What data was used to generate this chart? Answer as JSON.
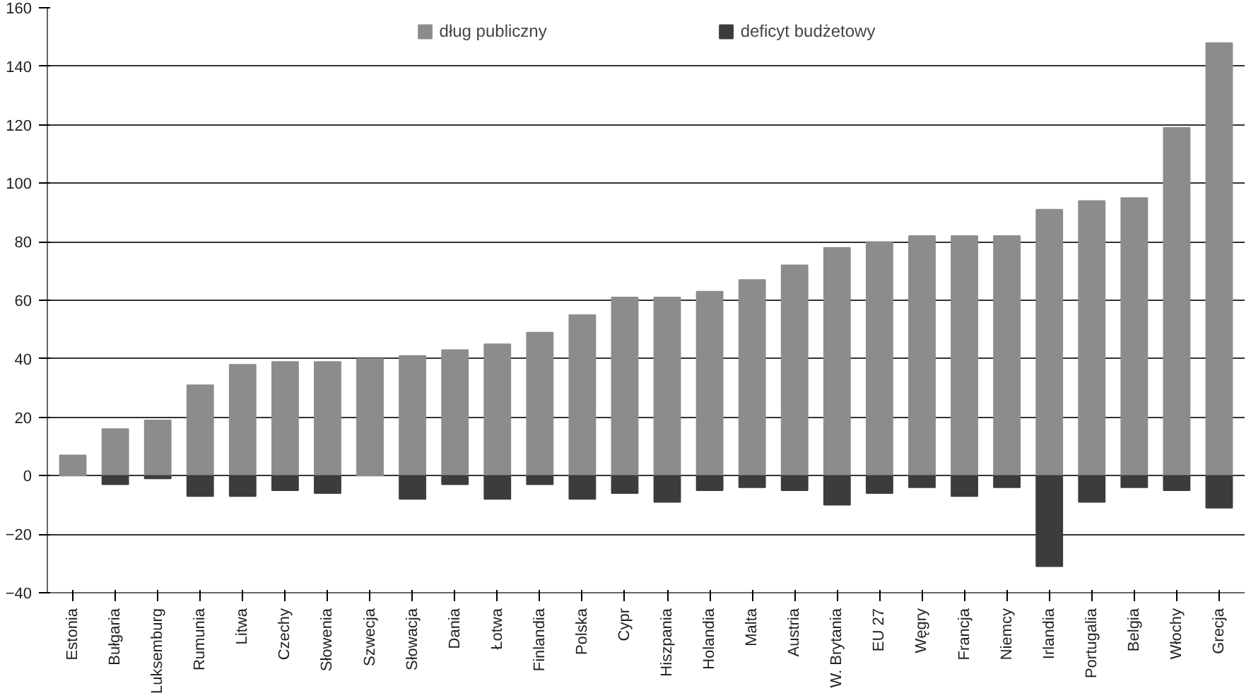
{
  "chart_data": {
    "type": "bar",
    "categories": [
      "Estonia",
      "Bułgaria",
      "Luksemburg",
      "Rumunia",
      "Litwa",
      "Czechy",
      "Słowenia",
      "Szwecja",
      "Słowacja",
      "Dania",
      "Łotwa",
      "Finlandia",
      "Polska",
      "Cypr",
      "Hiszpania",
      "Holandia",
      "Malta",
      "Austria",
      "W. Brytania",
      "EU 27",
      "Węgry",
      "Francja",
      "Niemcy",
      "Irlandia",
      "Portugalia",
      "Belgia",
      "Włochy",
      "Grecja"
    ],
    "series": [
      {
        "name": "dług publiczny",
        "color": "#8c8c8c",
        "values": [
          7,
          16,
          19,
          31,
          38,
          39,
          39,
          40,
          41,
          43,
          45,
          49,
          55,
          61,
          61,
          63,
          67,
          72,
          78,
          80,
          82,
          82,
          82,
          91,
          94,
          95,
          119,
          148
        ]
      },
      {
        "name": "deficyt budżetowy",
        "color": "#3c3c3c",
        "values": [
          null,
          -3,
          -1,
          -7,
          -7,
          -5,
          -6,
          null,
          -8,
          -3,
          -8,
          -3,
          -8,
          -6,
          -9,
          -5,
          -4,
          -5,
          -10,
          -6,
          -4,
          -7,
          -4,
          -31,
          -9,
          -4,
          -5,
          -11
        ]
      }
    ],
    "ylim": [
      -40,
      160
    ],
    "yticks": [
      -40,
      -20,
      0,
      20,
      40,
      60,
      80,
      100,
      120,
      140,
      160
    ],
    "grid": "y",
    "stacked": true,
    "legend": "top"
  }
}
